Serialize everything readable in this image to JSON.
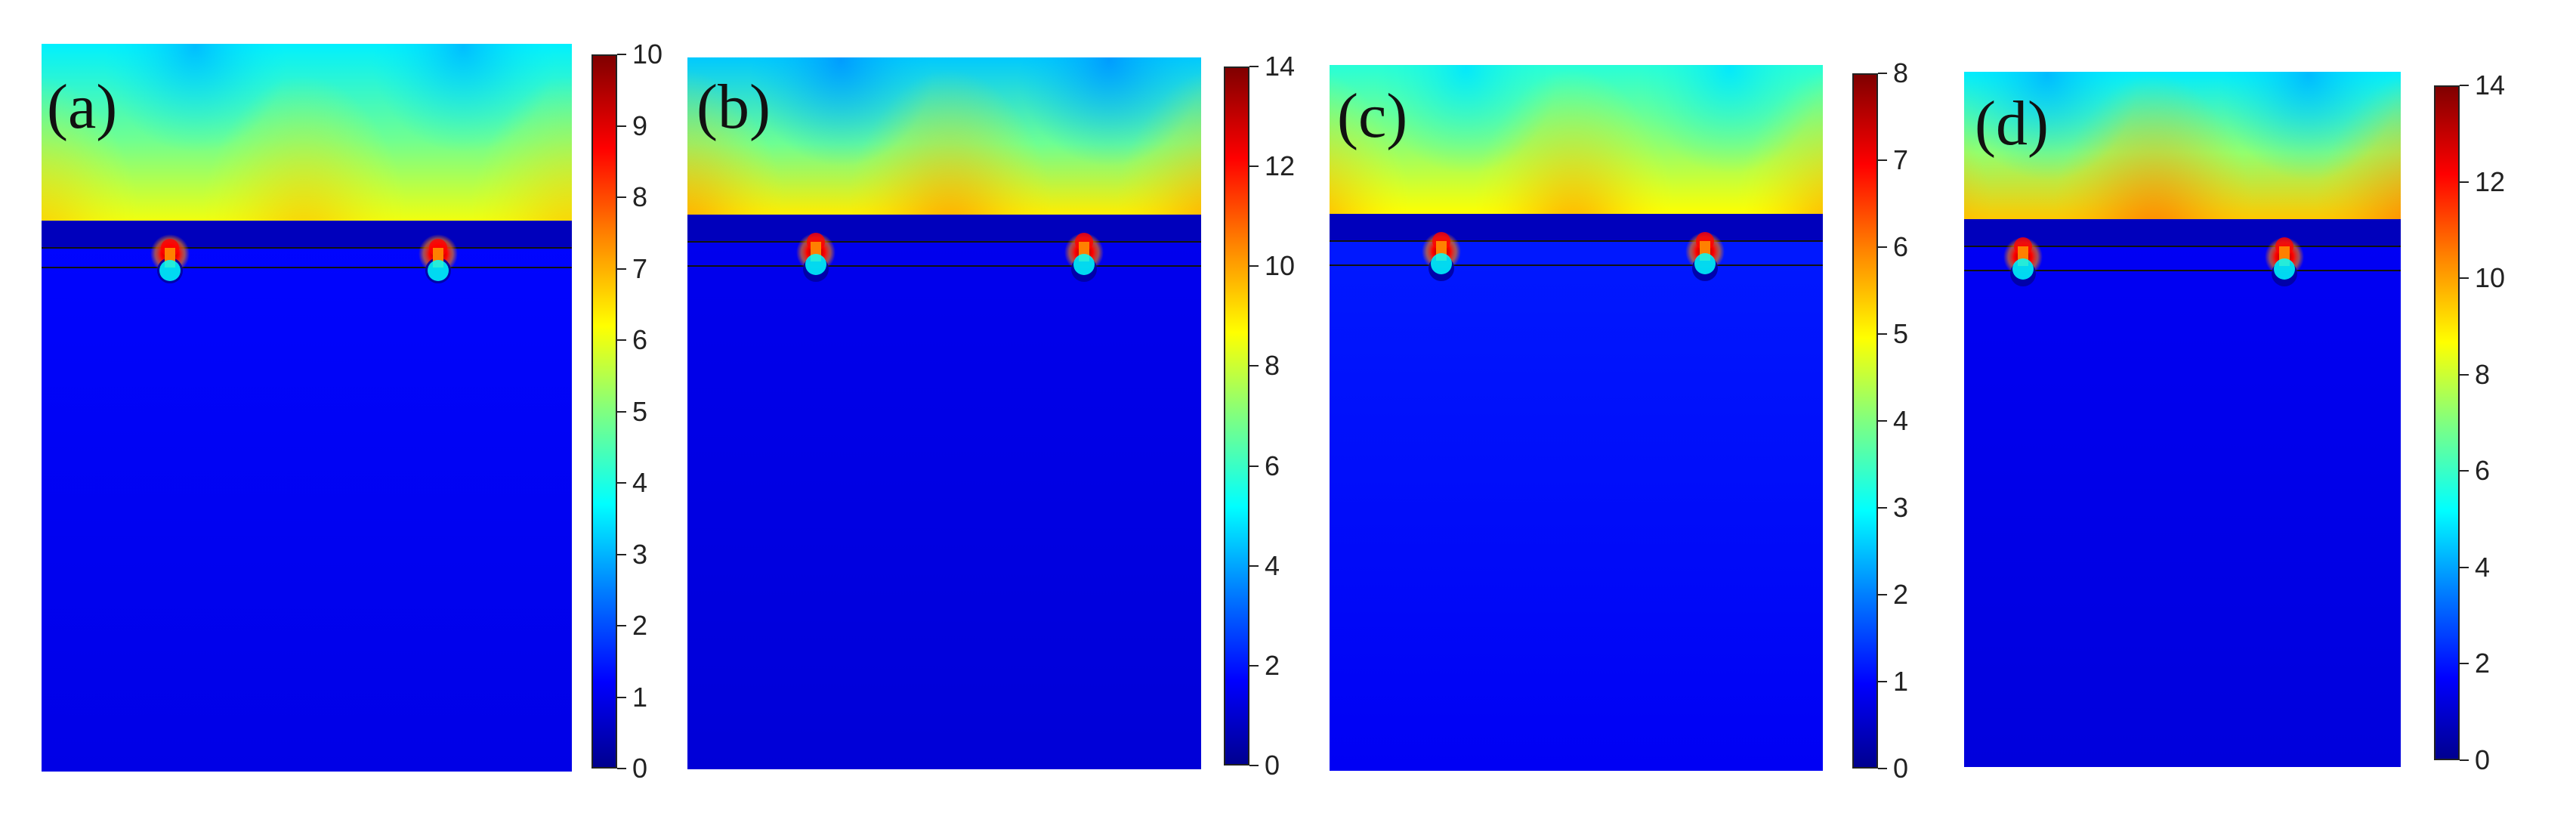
{
  "colors": {
    "jet": [
      "#00008f",
      "#0000ff",
      "#0080ff",
      "#00ffff",
      "#80ff80",
      "#ffff00",
      "#ff8000",
      "#ff0000",
      "#800000"
    ],
    "substrate": "#0a1fc8",
    "field_top": "#1fa0ff",
    "interface_line": "#111111",
    "rod_fill": "#f4f27a"
  },
  "chart_data": [
    {
      "type": "heatmap",
      "panel": "(a)",
      "colorbar": {
        "min": 0,
        "max": 10,
        "ticks": [
          0,
          1,
          2,
          3,
          4,
          5,
          6,
          7,
          8,
          9,
          10
        ]
      },
      "colorbar_ticks": [
        "0",
        "1",
        "2",
        "3",
        "4",
        "5",
        "6",
        "7",
        "8",
        "9",
        "10"
      ],
      "field": {
        "top_value": 3.6,
        "mid_value": 6.1,
        "peak_value": 7.0,
        "substrate_value": 1.3
      }
    },
    {
      "type": "heatmap",
      "panel": "(b)",
      "colorbar": {
        "min": 0,
        "max": 14,
        "ticks": [
          0,
          2,
          4,
          6,
          8,
          10,
          12,
          14
        ]
      },
      "colorbar_ticks": [
        "0",
        "2",
        "4",
        "6",
        "8",
        "10",
        "12",
        "14"
      ],
      "field": {
        "top_value": 4.5,
        "mid_value": 9.0,
        "peak_value": 10.5,
        "substrate_value": 1.5
      }
    },
    {
      "type": "heatmap",
      "panel": "(c)",
      "colorbar": {
        "min": 0,
        "max": 8,
        "ticks": [
          0,
          1,
          2,
          3,
          4,
          5,
          6,
          7,
          8
        ]
      },
      "colorbar_ticks": [
        "0",
        "1",
        "2",
        "3",
        "4",
        "5",
        "6",
        "7",
        "8"
      ],
      "field": {
        "top_value": 3.3,
        "mid_value": 5.0,
        "peak_value": 6.0,
        "substrate_value": 1.2
      }
    },
    {
      "type": "heatmap",
      "panel": "(d)",
      "colorbar": {
        "min": 0,
        "max": 14,
        "ticks": [
          0,
          2,
          4,
          6,
          8,
          10,
          12,
          14
        ]
      },
      "colorbar_ticks": [
        "0",
        "2",
        "4",
        "6",
        "8",
        "10",
        "12",
        "14"
      ],
      "field": {
        "top_value": 5.0,
        "mid_value": 9.5,
        "peak_value": 11.0,
        "substrate_value": 1.6
      }
    }
  ]
}
